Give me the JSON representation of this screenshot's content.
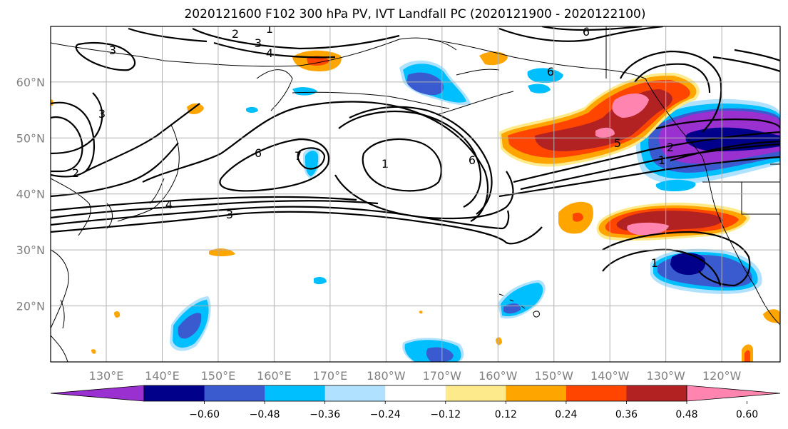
{
  "title": "2020121600 F102 300 hPa PV, IVT Landfall PC (2020121900 - 2020122100)",
  "map": {
    "lat_labels": [
      {
        "text": "60°N",
        "lat": 60
      },
      {
        "text": "50°N",
        "lat": 50
      },
      {
        "text": "40°N",
        "lat": 40
      },
      {
        "text": "30°N",
        "lat": 30
      },
      {
        "text": "20°N",
        "lat": 20
      }
    ],
    "lon_labels": [
      {
        "text": "130°E",
        "lon": 130
      },
      {
        "text": "140°E",
        "lon": 140
      },
      {
        "text": "150°E",
        "lon": 150
      },
      {
        "text": "160°E",
        "lon": 160
      },
      {
        "text": "170°E",
        "lon": 170
      },
      {
        "text": "180°W",
        "lon": 180
      },
      {
        "text": "170°W",
        "lon": 190
      },
      {
        "text": "160°W",
        "lon": 200
      },
      {
        "text": "150°W",
        "lon": 210
      },
      {
        "text": "140°W",
        "lon": 220
      },
      {
        "text": "130°W",
        "lon": 230
      },
      {
        "text": "120°W",
        "lon": 240
      }
    ],
    "pv_contour_labels": [
      "2",
      "1",
      "3",
      "4",
      "6",
      "3",
      "3",
      "2",
      "4",
      "6",
      "7",
      "1",
      "6",
      "3",
      "5",
      "2",
      "1",
      "1",
      "6"
    ]
  },
  "colorbar": {
    "ticks": [
      "−0.60",
      "−0.48",
      "−0.36",
      "−0.24",
      "−0.12",
      "0.12",
      "0.24",
      "0.36",
      "0.48",
      "0.60"
    ],
    "colors": [
      "#9b30d0",
      "#00008b",
      "#3a5bd0",
      "#00bfff",
      "#b0e2ff",
      "#ffffff",
      "#fdea8b",
      "#ffa500",
      "#ff4500",
      "#b22222",
      "#ff85b0"
    ],
    "levels": [
      -0.6,
      -0.48,
      -0.36,
      -0.24,
      -0.12,
      0.12,
      0.24,
      0.36,
      0.48,
      0.6
    ]
  }
}
